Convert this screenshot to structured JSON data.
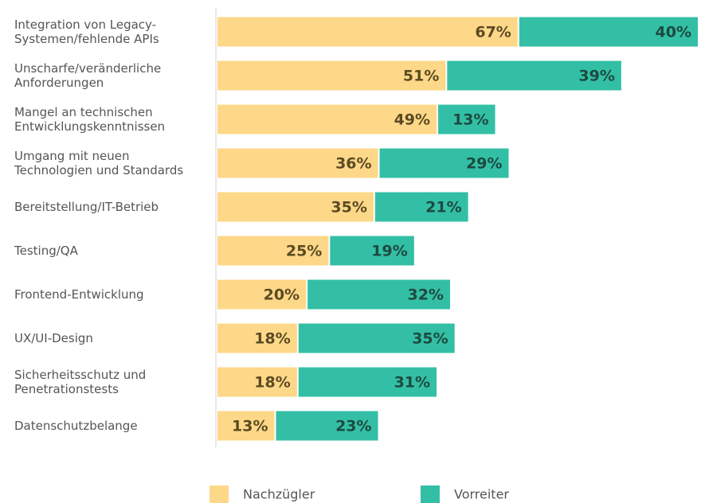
{
  "chart_data": {
    "type": "stacked-bar-horizontal",
    "categories": [
      [
        "Integration von Legacy-",
        "Systemen/fehlende APIs"
      ],
      [
        "Unscharfe/veränderliche",
        "Anforderungen"
      ],
      [
        "Mangel an technischen",
        "Entwicklungskenntnissen"
      ],
      [
        "Umgang mit neuen",
        "Technologien und Standards"
      ],
      [
        "Bereitstellung/IT-Betrieb"
      ],
      [
        "Testing/QA"
      ],
      [
        "Frontend-Entwicklung"
      ],
      [
        "UX/UI-Design"
      ],
      [
        "Sicherheitsschutz und",
        "Penetrationstests"
      ],
      [
        "Datenschutzbelange"
      ]
    ],
    "series": [
      {
        "name": "Nachzügler",
        "color": "#fdd888",
        "label_color": "#5b4a22",
        "values": [
          67,
          51,
          49,
          36,
          35,
          25,
          20,
          18,
          18,
          13
        ],
        "value_labels": [
          "67%",
          "51%",
          "49%",
          "36%",
          "35%",
          "25%",
          "20%",
          "18%",
          "18%",
          "13%"
        ]
      },
      {
        "name": "Vorreiter",
        "color": "#33bfa5",
        "label_color": "#1d4a40",
        "values": [
          40,
          39,
          13,
          29,
          21,
          19,
          32,
          35,
          31,
          23
        ],
        "value_labels": [
          "40%",
          "39%",
          "13%",
          "29%",
          "21%",
          "19%",
          "32%",
          "35%",
          "31%",
          "23%"
        ]
      }
    ],
    "xlim": [
      0,
      107
    ]
  }
}
